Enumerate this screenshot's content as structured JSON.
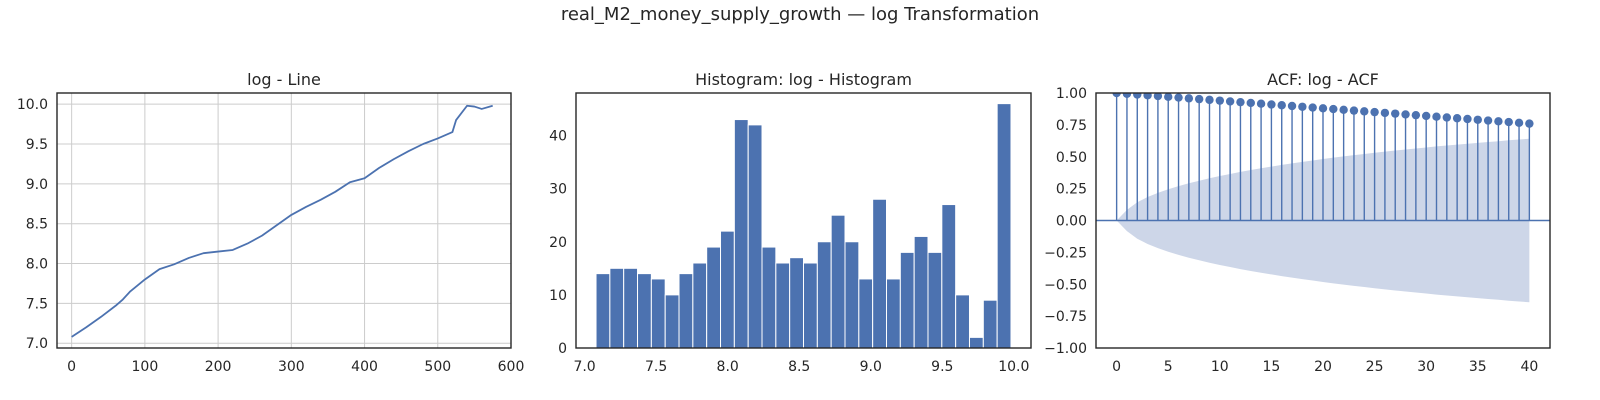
{
  "title": "real_M2_money_supply_growth — log Transformation",
  "colors": {
    "series": "#4c72b0",
    "grid": "#cccccc",
    "axes": "#262626",
    "band": "#cdd6e8"
  },
  "chart_data": [
    {
      "type": "line",
      "title": "log - Line",
      "xlim": [
        -20,
        600
      ],
      "ylim": [
        6.94,
        10.14
      ],
      "xticks": [
        0,
        100,
        200,
        300,
        400,
        500,
        600
      ],
      "yticks": [
        7.0,
        7.5,
        8.0,
        8.5,
        9.0,
        9.5,
        10.0
      ],
      "xtick_labels": [
        "0",
        "100",
        "200",
        "300",
        "400",
        "500",
        "600"
      ],
      "ytick_labels": [
        "7.0",
        "7.5",
        "8.0",
        "8.5",
        "9.0",
        "9.5",
        "10.0"
      ],
      "grid": true,
      "points": [
        [
          0,
          7.08
        ],
        [
          20,
          7.2
        ],
        [
          40,
          7.33
        ],
        [
          60,
          7.47
        ],
        [
          70,
          7.55
        ],
        [
          80,
          7.65
        ],
        [
          100,
          7.8
        ],
        [
          120,
          7.93
        ],
        [
          140,
          7.99
        ],
        [
          160,
          8.07
        ],
        [
          180,
          8.13
        ],
        [
          200,
          8.15
        ],
        [
          220,
          8.17
        ],
        [
          240,
          8.25
        ],
        [
          260,
          8.35
        ],
        [
          280,
          8.48
        ],
        [
          300,
          8.61
        ],
        [
          320,
          8.71
        ],
        [
          340,
          8.8
        ],
        [
          360,
          8.9
        ],
        [
          380,
          9.02
        ],
        [
          400,
          9.07
        ],
        [
          420,
          9.2
        ],
        [
          440,
          9.31
        ],
        [
          460,
          9.41
        ],
        [
          480,
          9.5
        ],
        [
          500,
          9.57
        ],
        [
          520,
          9.65
        ],
        [
          525,
          9.8
        ],
        [
          540,
          9.98
        ],
        [
          550,
          9.97
        ],
        [
          560,
          9.94
        ],
        [
          575,
          9.98
        ]
      ]
    },
    {
      "type": "bar",
      "title": "Histogram: log - Histogram",
      "xlim": [
        6.94,
        10.12
      ],
      "ylim": [
        0,
        48
      ],
      "xticks": [
        7.0,
        7.5,
        8.0,
        8.5,
        9.0,
        9.5,
        10.0
      ],
      "yticks": [
        0,
        10,
        20,
        30,
        40
      ],
      "xtick_labels": [
        "7.0",
        "7.5",
        "8.0",
        "8.5",
        "9.0",
        "9.5",
        "10.0"
      ],
      "ytick_labels": [
        "0",
        "10",
        "20",
        "30",
        "40"
      ],
      "grid": false,
      "bin_start": 7.08,
      "bin_width": 0.09667,
      "values": [
        14,
        15,
        15,
        14,
        13,
        10,
        14,
        16,
        19,
        22,
        43,
        42,
        19,
        16,
        17,
        16,
        20,
        25,
        20,
        13,
        28,
        13,
        18,
        21,
        18,
        27,
        10,
        2,
        9,
        46
      ]
    },
    {
      "type": "bar",
      "title": "ACF: log - ACF",
      "xlim": [
        -2,
        42
      ],
      "ylim": [
        -1.0,
        1.0
      ],
      "xticks": [
        0,
        5,
        10,
        15,
        20,
        25,
        30,
        35,
        40
      ],
      "yticks": [
        -1.0,
        -0.75,
        -0.5,
        -0.25,
        0.0,
        0.25,
        0.5,
        0.75,
        1.0
      ],
      "xtick_labels": [
        "0",
        "5",
        "10",
        "15",
        "20",
        "25",
        "30",
        "35",
        "40"
      ],
      "ytick_labels": [
        "−1.00",
        "−0.75",
        "−0.50",
        "−0.25",
        "0.00",
        "0.25",
        "0.50",
        "0.75",
        "1.00"
      ],
      "grid": false,
      "lags": [
        0,
        1,
        2,
        3,
        4,
        5,
        6,
        7,
        8,
        9,
        10,
        11,
        12,
        13,
        14,
        15,
        16,
        17,
        18,
        19,
        20,
        21,
        22,
        23,
        24,
        25,
        26,
        27,
        28,
        29,
        30,
        31,
        32,
        33,
        34,
        35,
        36,
        37,
        38,
        39,
        40
      ],
      "values": [
        1.0,
        0.994,
        0.988,
        0.982,
        0.976,
        0.97,
        0.964,
        0.958,
        0.952,
        0.946,
        0.94,
        0.934,
        0.928,
        0.922,
        0.916,
        0.91,
        0.904,
        0.898,
        0.892,
        0.886,
        0.88,
        0.874,
        0.868,
        0.862,
        0.856,
        0.85,
        0.844,
        0.838,
        0.832,
        0.826,
        0.82,
        0.814,
        0.808,
        0.802,
        0.796,
        0.79,
        0.784,
        0.778,
        0.772,
        0.766,
        0.76
      ],
      "confidence_band": [
        0.0,
        0.083,
        0.143,
        0.184,
        0.217,
        0.245,
        0.27,
        0.292,
        0.312,
        0.331,
        0.349,
        0.365,
        0.381,
        0.396,
        0.41,
        0.423,
        0.436,
        0.448,
        0.46,
        0.471,
        0.482,
        0.493,
        0.503,
        0.513,
        0.522,
        0.531,
        0.54,
        0.549,
        0.557,
        0.565,
        0.573,
        0.581,
        0.588,
        0.595,
        0.602,
        0.609,
        0.616,
        0.622,
        0.629,
        0.635,
        0.641
      ]
    }
  ]
}
